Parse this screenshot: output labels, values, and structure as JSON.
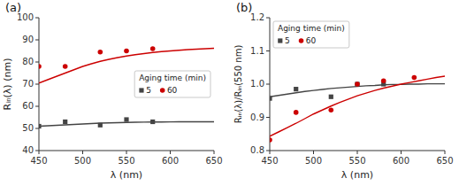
{
  "chart_data": [
    {
      "type": "scatter",
      "title": "(a)",
      "xlabel": "λ (nm)",
      "ylabel": "Rᵢₙ(λ) (nm)",
      "xlim": [
        450,
        650
      ],
      "ylim": [
        40,
        100
      ],
      "xticks": [
        450,
        500,
        550,
        600,
        650
      ],
      "yticks": [
        40,
        50,
        60,
        70,
        80,
        90,
        100
      ],
      "legend": "center right",
      "legend_title": "Aging time (min)",
      "series": [
        {
          "type": "line",
          "color": "#444444",
          "x": [
            450,
            460,
            470,
            480,
            490,
            500,
            510,
            520,
            530,
            540,
            550,
            560,
            570,
            580,
            590,
            600,
            610,
            620,
            630,
            640,
            650
          ],
          "values": [
            51.0,
            51.2,
            51.4,
            51.6,
            51.8,
            52.0,
            52.2,
            52.4,
            52.5,
            52.6,
            52.7,
            52.8,
            52.85,
            52.9,
            52.92,
            52.95,
            52.97,
            52.98,
            52.99,
            53.0,
            53.0
          ]
        },
        {
          "name": "5",
          "type": "scatter",
          "color": "#444444",
          "marker": "square",
          "x": [
            450,
            480,
            520,
            550,
            580
          ],
          "values": [
            51,
            53,
            51.5,
            54,
            53
          ]
        },
        {
          "type": "line",
          "color": "#cc0000",
          "x": [
            450,
            460,
            470,
            480,
            490,
            500,
            510,
            520,
            530,
            540,
            550,
            560,
            570,
            580,
            590,
            600,
            610,
            620,
            630,
            640,
            650
          ],
          "values": [
            70.5,
            72.0,
            73.5,
            75.0,
            76.5,
            78.0,
            79.2,
            80.3,
            81.2,
            82.0,
            82.7,
            83.3,
            83.8,
            84.3,
            84.7,
            85.0,
            85.3,
            85.6,
            85.8,
            86.0,
            86.2
          ]
        },
        {
          "name": "60",
          "type": "scatter",
          "color": "#cc0000",
          "marker": "circle",
          "x": [
            450,
            480,
            520,
            550,
            580
          ],
          "values": [
            78,
            78,
            84.5,
            85,
            86
          ]
        }
      ]
    },
    {
      "type": "scatter",
      "title": "(b)",
      "xlabel": "λ (nm)",
      "ylabel": "Rᵢₙ(λ)/Rᵢₙ(550 nm)",
      "xlim": [
        450,
        650
      ],
      "ylim": [
        0.8,
        1.2
      ],
      "xticks": [
        450,
        500,
        550,
        600,
        650
      ],
      "yticks": [
        0.8,
        0.9,
        {
          "value": 1.0,
          "label": "1.0"
        },
        1.1,
        1.2
      ],
      "legend": "upper left",
      "legend_title": "Aging time (min)",
      "series": [
        {
          "type": "line",
          "color": "#444444",
          "x": [
            450,
            460,
            470,
            480,
            490,
            500,
            510,
            520,
            530,
            540,
            550,
            560,
            570,
            580,
            590,
            600,
            610,
            620,
            630,
            640,
            650
          ],
          "values": [
            0.962,
            0.966,
            0.97,
            0.974,
            0.978,
            0.981,
            0.984,
            0.987,
            0.989,
            0.991,
            0.993,
            0.995,
            0.996,
            0.998,
            0.999,
            0.999,
            1.0,
            1.0,
            1.001,
            1.001,
            1.001
          ]
        },
        {
          "name": "5",
          "type": "scatter",
          "color": "#444444",
          "marker": "square",
          "x": [
            450,
            480,
            520,
            550,
            580
          ],
          "values": [
            0.957,
            0.985,
            0.962,
            1.0,
            1.0
          ]
        },
        {
          "type": "line",
          "color": "#cc0000",
          "x": [
            450,
            460,
            470,
            480,
            490,
            500,
            510,
            520,
            530,
            540,
            550,
            560,
            570,
            580,
            590,
            600,
            610,
            620,
            630,
            640,
            650
          ],
          "values": [
            0.843,
            0.856,
            0.869,
            0.882,
            0.896,
            0.91,
            0.922,
            0.934,
            0.945,
            0.955,
            0.965,
            0.973,
            0.981,
            0.988,
            0.994,
            1.0,
            1.005,
            1.01,
            1.015,
            1.02,
            1.024
          ]
        },
        {
          "name": "60",
          "type": "scatter",
          "color": "#cc0000",
          "marker": "circle",
          "x": [
            450,
            480,
            520,
            550,
            580,
            615
          ],
          "values": [
            0.832,
            0.915,
            0.922,
            1.0,
            1.01,
            1.02
          ]
        }
      ]
    }
  ]
}
